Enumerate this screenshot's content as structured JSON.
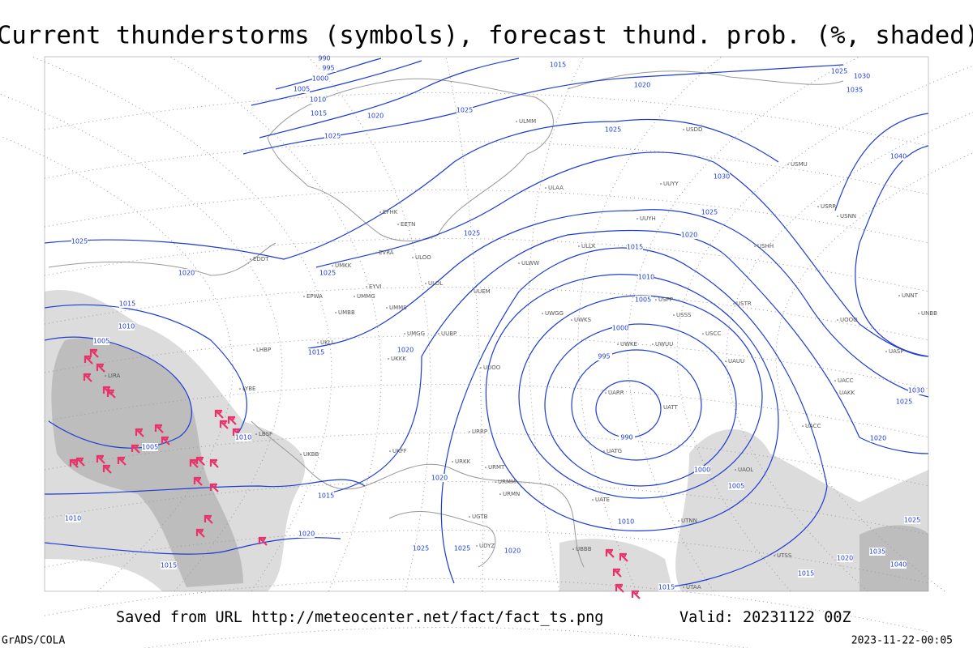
{
  "header": {
    "title": "Current thunderstorms (symbols), forecast thund. prob. (%, shaded)"
  },
  "map": {
    "isobar_labels": [
      "990",
      "995",
      "1000",
      "1005",
      "1010",
      "1015",
      "1020",
      "1025",
      "1025",
      "1015",
      "1020",
      "1025",
      "1030",
      "1025",
      "1020",
      "1015",
      "1010",
      "1005",
      "1000",
      "995",
      "990",
      "1000",
      "1005",
      "1010",
      "1015",
      "1020",
      "1025",
      "1030",
      "1040",
      "1035",
      "1030",
      "1025",
      "1025",
      "1020",
      "1025",
      "1025",
      "1015",
      "1010",
      "1005",
      "1015",
      "1020",
      "1010",
      "1005",
      "1015",
      "1020",
      "1010",
      "1020",
      "1015",
      "1025",
      "1025",
      "1020",
      "1035",
      "1020",
      "1040",
      "1015",
      "1025"
    ],
    "stations": [
      "ULAA",
      "UUYY",
      "UUYH",
      "ULLK",
      "ULWW",
      "UUEM",
      "UWGG",
      "UWKS",
      "UWKE",
      "UWUU",
      "UARR",
      "UATT",
      "UATG",
      "USSS",
      "USCC",
      "UAUU",
      "UACC",
      "UAKK",
      "UASP",
      "USRR",
      "USNN",
      "USHH",
      "USTR",
      "USPP",
      "UNBB",
      "UNNT",
      "UOOO",
      "UUOO",
      "UKKK",
      "UKBB",
      "URRP",
      "UKFF",
      "URKK",
      "URMT",
      "URMM",
      "URMN",
      "UGTB",
      "UDYZ",
      "UBBB",
      "UTAA",
      "UTSS",
      "EFHK",
      "EETN",
      "EVRA",
      "ULOL",
      "UMMS",
      "UMGG",
      "UUBP",
      "LIRA",
      "LYBE",
      "LBSF",
      "EDDT",
      "EPWA",
      "UKLL",
      "LHBP",
      "UMMG",
      "EYVI",
      "UMBB",
      "UMKK",
      "ULMM",
      "ULOO",
      "USDD",
      "USMU",
      "UATE",
      "UTNN",
      "UAOL",
      "UACC"
    ]
  },
  "footer": {
    "source": "Saved from URL http://meteocenter.net/fact/fact_ts.png",
    "valid": "Valid: 20231122 00Z",
    "left": "GrADS/COLA",
    "right": "2023-11-22-00:05"
  }
}
